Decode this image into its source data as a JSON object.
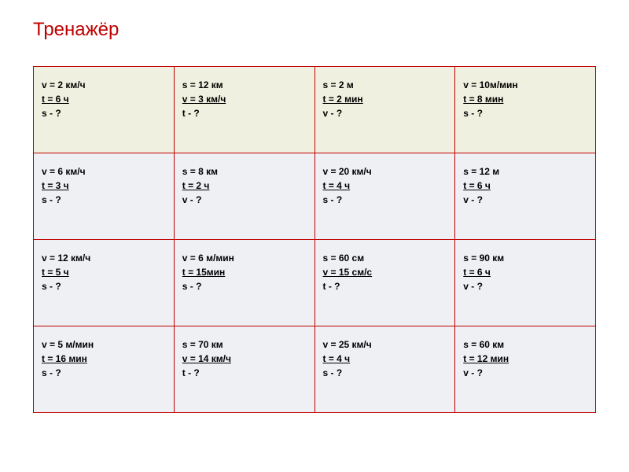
{
  "title": "Тренажёр",
  "colors": {
    "title": "#c00000",
    "border": "#c00000",
    "row1_bg": "#f0f0e0",
    "row_other_bg": "#eef0f4",
    "page_bg": "#ffffff",
    "text": "#000000"
  },
  "layout": {
    "columns": 4,
    "rows": 4,
    "cell_font_size": 12,
    "title_font_size": 24
  },
  "cells": [
    [
      {
        "l1": "v = 2 км/ч",
        "l2": "t =  6 ч",
        "l3": "s - ?"
      },
      {
        "l1": "s = 12 км",
        "l2": "v =  3 км/ч",
        "l3": "t - ?"
      },
      {
        "l1": "s = 2 м",
        "l2": "t =  2 мин",
        "l3": "v - ?"
      },
      {
        "l1": "v = 10м/мин",
        "l2": "t =  8 мин",
        "l3": "s - ?"
      }
    ],
    [
      {
        "l1": "v = 6 км/ч",
        "l2": "t =  3 ч",
        "l3": "s - ?"
      },
      {
        "l1": "s = 8 км",
        "l2": "t =  2 ч",
        "l3": "v - ?"
      },
      {
        "l1": "v = 20 км/ч",
        "l2": "t =  4 ч",
        "l3": "s - ?"
      },
      {
        "l1": "s = 12 м",
        "l2": "t =  6 ч",
        "l3": "v - ?"
      }
    ],
    [
      {
        "l1": "v = 12 км/ч",
        "l2": "t =  5 ч",
        "l3": "s - ?"
      },
      {
        "l1": "v = 6 м/мин",
        "l2": "t =  15мин",
        "l3": "s - ?"
      },
      {
        "l1": "s = 60 см",
        "l2": "v =  15 см/с",
        "l3": "t - ?"
      },
      {
        "l1": "s = 90 км",
        "l2": "t =  6 ч",
        "l3": "v - ?"
      }
    ],
    [
      {
        "l1": "v = 5 м/мин",
        "l2": "t =  16 мин",
        "l3": "s - ?"
      },
      {
        "l1": "s = 70 км",
        "l2": "v =  14 км/ч",
        "l3": "t - ?"
      },
      {
        "l1": "v = 25 км/ч",
        "l2": "t =  4 ч",
        "l3": "s - ?"
      },
      {
        "l1": "s = 60 км",
        "l2": "t =  12 мин",
        "l3": "v - ?"
      }
    ]
  ]
}
